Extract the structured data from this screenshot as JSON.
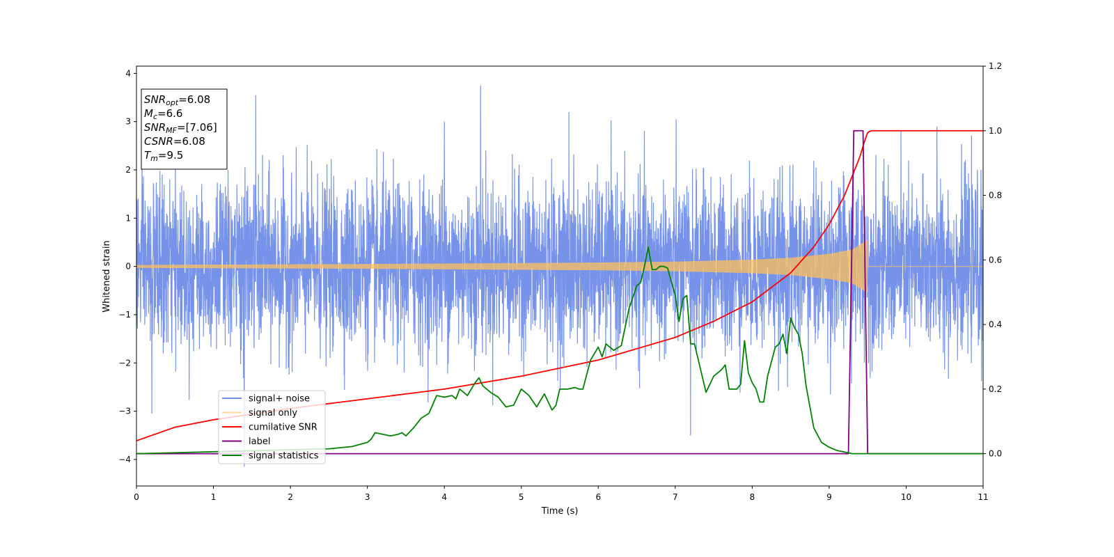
{
  "chart_data": {
    "type": "line",
    "xlabel": "Time (s)",
    "ylabel": "Whitened strain",
    "xlim": [
      0,
      11
    ],
    "ylim": [
      -4.55,
      4.15
    ],
    "y2lim": [
      -0.1,
      1.2
    ],
    "x_ticks": [
      0,
      1,
      2,
      3,
      4,
      5,
      6,
      7,
      8,
      9,
      10,
      11
    ],
    "y_ticks": [
      -4,
      -3,
      -2,
      -1,
      0,
      1,
      2,
      3,
      4
    ],
    "y2_ticks": [
      0.0,
      0.2,
      0.4,
      0.6,
      0.8,
      1.0,
      1.2
    ],
    "grid": false,
    "legend_position": "lower-left",
    "annotation_box": [
      {
        "label": "SNR",
        "sub": "opt",
        "value": "=6.08"
      },
      {
        "label": "M",
        "sub": "c",
        "value": "=6.6"
      },
      {
        "label": "SNR",
        "sub": "MF",
        "value": "=[7.06]"
      },
      {
        "label": "CSNR",
        "sub": "",
        "value": "=6.08"
      },
      {
        "label": "T",
        "sub": "m",
        "value": "=9.5"
      }
    ],
    "series": [
      {
        "name": "signal+ noise",
        "axis": "left",
        "color": "#4169e1",
        "noise_sigma": 0.85,
        "peaks": [
          {
            "x": 1.55,
            "y": 3.55
          },
          {
            "x": 4.47,
            "y": 3.75
          },
          {
            "x": 5.62,
            "y": 3.2
          },
          {
            "x": 4.0,
            "y": 3.0
          },
          {
            "x": 1.4,
            "y": -4.15
          },
          {
            "x": 7.2,
            "y": -3.5
          },
          {
            "x": 0.2,
            "y": -3.05
          },
          {
            "x": 10.4,
            "y": 2.9
          }
        ]
      },
      {
        "name": "signal only",
        "axis": "left",
        "color": "#ffbf59",
        "amplitude_points": [
          [
            0,
            0.03
          ],
          [
            3,
            0.05
          ],
          [
            5,
            0.07
          ],
          [
            6,
            0.08
          ],
          [
            7,
            0.1
          ],
          [
            8,
            0.14
          ],
          [
            8.5,
            0.18
          ],
          [
            9,
            0.26
          ],
          [
            9.3,
            0.35
          ],
          [
            9.45,
            0.5
          ],
          [
            9.5,
            0.55
          ]
        ],
        "merger_time": 9.5
      },
      {
        "name": "cumilative SNR",
        "axis": "right",
        "color": "#ff0000",
        "x": [
          0,
          0.5,
          1,
          2,
          3,
          4,
          5,
          6,
          7,
          7.5,
          8,
          8.5,
          8.8,
          9,
          9.2,
          9.3,
          9.4,
          9.45,
          9.5,
          9.55,
          11
        ],
        "values": [
          0.04,
          0.082,
          0.105,
          0.14,
          0.17,
          0.2,
          0.24,
          0.29,
          0.36,
          0.41,
          0.47,
          0.56,
          0.64,
          0.71,
          0.8,
          0.86,
          0.92,
          0.96,
          0.995,
          1.0,
          1.0
        ]
      },
      {
        "name": "label",
        "axis": "right",
        "color": "#800080",
        "x": [
          0,
          9.25,
          9.32,
          9.44,
          9.5,
          11
        ],
        "values": [
          0,
          0,
          1,
          1,
          0,
          0
        ]
      },
      {
        "name": "signal statistics",
        "axis": "right",
        "color": "#008000",
        "x": [
          0,
          2.5,
          2.8,
          3.0,
          3.05,
          3.1,
          3.2,
          3.3,
          3.4,
          3.45,
          3.5,
          3.6,
          3.7,
          3.8,
          3.9,
          4.0,
          4.1,
          4.15,
          4.2,
          4.3,
          4.4,
          4.45,
          4.5,
          4.6,
          4.7,
          4.8,
          4.9,
          5.0,
          5.1,
          5.2,
          5.3,
          5.4,
          5.45,
          5.5,
          5.6,
          5.7,
          5.75,
          5.8,
          5.9,
          6.0,
          6.05,
          6.1,
          6.2,
          6.3,
          6.4,
          6.5,
          6.55,
          6.6,
          6.65,
          6.7,
          6.75,
          6.8,
          6.85,
          6.9,
          7.0,
          7.05,
          7.1,
          7.15,
          7.2,
          7.25,
          7.3,
          7.4,
          7.5,
          7.6,
          7.65,
          7.7,
          7.8,
          7.85,
          7.9,
          7.95,
          8.0,
          8.05,
          8.1,
          8.15,
          8.2,
          8.3,
          8.35,
          8.4,
          8.45,
          8.5,
          8.55,
          8.6,
          8.65,
          8.7,
          8.8,
          8.9,
          9.0,
          9.1,
          9.2,
          9.3,
          9.5,
          11
        ],
        "values": [
          0.0,
          0.015,
          0.022,
          0.035,
          0.045,
          0.065,
          0.06,
          0.055,
          0.06,
          0.065,
          0.055,
          0.08,
          0.11,
          0.125,
          0.18,
          0.175,
          0.18,
          0.17,
          0.2,
          0.18,
          0.22,
          0.235,
          0.21,
          0.19,
          0.175,
          0.145,
          0.15,
          0.2,
          0.18,
          0.145,
          0.185,
          0.135,
          0.15,
          0.2,
          0.2,
          0.205,
          0.2,
          0.2,
          0.29,
          0.33,
          0.3,
          0.34,
          0.32,
          0.335,
          0.45,
          0.52,
          0.53,
          0.58,
          0.64,
          0.57,
          0.57,
          0.58,
          0.58,
          0.575,
          0.49,
          0.41,
          0.48,
          0.49,
          0.34,
          0.34,
          0.29,
          0.19,
          0.24,
          0.26,
          0.275,
          0.2,
          0.2,
          0.215,
          0.35,
          0.25,
          0.22,
          0.2,
          0.16,
          0.16,
          0.24,
          0.33,
          0.34,
          0.37,
          0.31,
          0.42,
          0.39,
          0.37,
          0.31,
          0.21,
          0.08,
          0.035,
          0.02,
          0.01,
          0.005,
          0.0,
          0.0,
          0.0
        ]
      }
    ]
  }
}
